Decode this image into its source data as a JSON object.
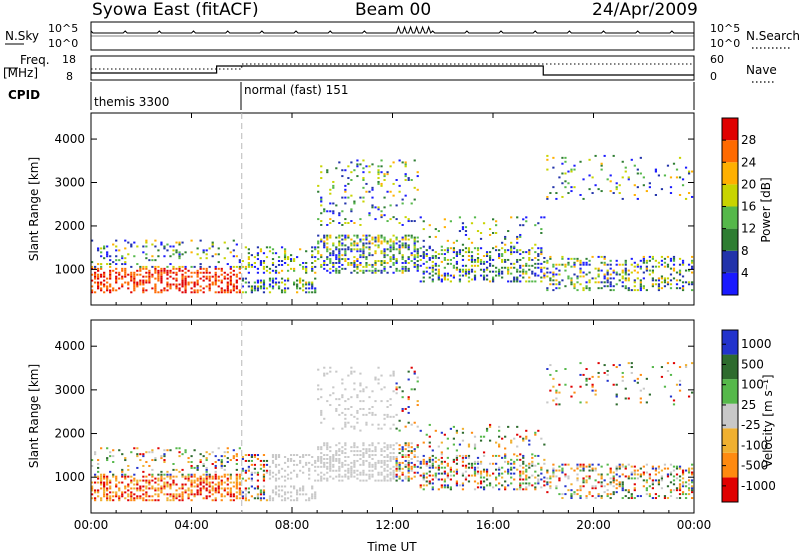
{
  "header": {
    "station": "Syowa East (fitACF)",
    "beam": "Beam 00",
    "date": "24/Apr/2009"
  },
  "top_panel": {
    "left_label": "N.Sky",
    "left_ticks": [
      "10^5",
      "10^0"
    ],
    "right_label": "N.Search",
    "right_ticks": [
      "10^5",
      "10^0"
    ]
  },
  "freq_panel": {
    "left_label_1": "Freq.",
    "left_label_2": "[MHz]",
    "left_ticks": [
      "18",
      "8"
    ],
    "right_label": "Nave",
    "right_ticks": [
      "60",
      "0"
    ]
  },
  "cpid": {
    "label": "CPID",
    "modes": [
      "themis 3300",
      "normal (fast) 151"
    ]
  },
  "colors": {
    "power_scale": [
      "#1a1aff",
      "#2233aa",
      "#2e7d32",
      "#55b84a",
      "#c8d400",
      "#ffb000",
      "#ff6a00",
      "#e00000"
    ],
    "velocity_scale": [
      "#2233cc",
      "#2e6b2e",
      "#55b84a",
      "#c8c8c8",
      "#f0b030",
      "#ff8a10",
      "#e00000"
    ]
  },
  "chart_data": [
    {
      "type": "heatmap",
      "title": "",
      "xlabel": "Time UT",
      "ylabel": "Slant Range [km]",
      "xlim": [
        0,
        24
      ],
      "x_tick_labels": [
        "00:00",
        "04:00",
        "08:00",
        "12:00",
        "16:00",
        "20:00",
        "00:00"
      ],
      "ylim": [
        180,
        4600
      ],
      "y_ticks": [
        1000,
        2000,
        3000,
        4000
      ],
      "colorbar": {
        "label": "Power [dB]",
        "ticks": [
          4,
          8,
          12,
          16,
          20,
          24,
          28
        ]
      }
    },
    {
      "type": "heatmap",
      "title": "",
      "xlabel": "Time UT",
      "ylabel": "Slant Range [km]",
      "xlim": [
        0,
        24
      ],
      "x_tick_labels": [
        "00:00",
        "04:00",
        "08:00",
        "12:00",
        "16:00",
        "20:00",
        "00:00"
      ],
      "ylim": [
        180,
        4600
      ],
      "y_ticks": [
        1000,
        2000,
        3000,
        4000
      ],
      "colorbar": {
        "label": "Velocity [m s⁻¹]",
        "ticks": [
          1000,
          500,
          100,
          25,
          -25,
          -100,
          -500,
          -1000
        ]
      }
    }
  ]
}
